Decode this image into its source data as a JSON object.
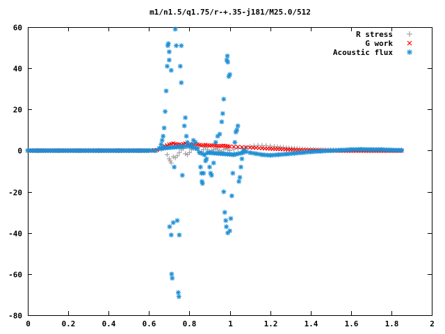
{
  "chart_data": {
    "type": "scatter",
    "title": "m1/n1.5/q1.75/r-+.35-j181/M25.0/512",
    "xlabel": "",
    "ylabel": "",
    "xlim": [
      0,
      2
    ],
    "ylim": [
      -80,
      60
    ],
    "x_ticks": [
      0,
      0.2,
      0.4,
      0.6,
      0.8,
      1,
      1.2,
      1.4,
      1.6,
      1.8,
      2
    ],
    "x_tick_labels": [
      "0",
      "0.2",
      "0.4",
      "0.6",
      "0.8",
      "1",
      "1.2",
      "1.4",
      "1.6",
      "1.8",
      "2"
    ],
    "y_ticks": [
      -80,
      -60,
      -40,
      -20,
      0,
      20,
      40,
      60
    ],
    "y_tick_labels": [
      "-80",
      "-60",
      "-40",
      "-20",
      "0",
      "20",
      "40",
      "60"
    ],
    "grid": false,
    "legend_position": "top-right",
    "series": [
      {
        "name": "R stress",
        "marker": "plus",
        "color": "#a0a0a0",
        "points": [
          [
            0.0,
            0.0
          ],
          [
            0.1,
            0.0
          ],
          [
            0.2,
            0.0
          ],
          [
            0.3,
            0.0
          ],
          [
            0.4,
            0.0
          ],
          [
            0.5,
            0.0
          ],
          [
            0.6,
            0.0
          ],
          [
            0.64,
            0.0
          ],
          [
            0.66,
            0.5
          ],
          [
            0.67,
            1.0
          ],
          [
            0.68,
            2.5
          ],
          [
            0.69,
            -2.0
          ],
          [
            0.7,
            -4.0
          ],
          [
            0.705,
            -5.0
          ],
          [
            0.71,
            -6.0
          ],
          [
            0.72,
            -3.0
          ],
          [
            0.73,
            -3.5
          ],
          [
            0.74,
            -2.5
          ],
          [
            0.75,
            -1.0
          ],
          [
            0.76,
            0.5
          ],
          [
            0.77,
            1.0
          ],
          [
            0.78,
            -1.5
          ],
          [
            0.79,
            -2.0
          ],
          [
            0.8,
            -1.0
          ],
          [
            0.81,
            0.5
          ],
          [
            0.82,
            1.0
          ],
          [
            0.83,
            1.5
          ],
          [
            0.84,
            0.0
          ],
          [
            0.85,
            -1.0
          ],
          [
            0.86,
            -0.5
          ],
          [
            0.87,
            0.5
          ],
          [
            0.88,
            1.5
          ],
          [
            0.89,
            0.5
          ],
          [
            0.9,
            -0.5
          ],
          [
            0.91,
            0.0
          ],
          [
            0.92,
            0.5
          ],
          [
            0.93,
            1.0
          ],
          [
            0.94,
            0.5
          ],
          [
            0.95,
            0.0
          ],
          [
            0.96,
            -0.5
          ],
          [
            0.97,
            0.5
          ],
          [
            0.98,
            1.0
          ],
          [
            0.99,
            0.5
          ],
          [
            1.0,
            0.0
          ],
          [
            1.02,
            0.5
          ],
          [
            1.04,
            1.0
          ],
          [
            1.06,
            1.0
          ],
          [
            1.08,
            1.5
          ],
          [
            1.1,
            2.0
          ],
          [
            1.12,
            2.3
          ],
          [
            1.14,
            2.5
          ],
          [
            1.16,
            2.5
          ],
          [
            1.18,
            2.4
          ],
          [
            1.2,
            2.2
          ],
          [
            1.22,
            2.0
          ],
          [
            1.25,
            1.7
          ],
          [
            1.28,
            1.4
          ],
          [
            1.32,
            1.1
          ],
          [
            1.36,
            0.8
          ],
          [
            1.4,
            0.6
          ],
          [
            1.45,
            0.4
          ],
          [
            1.5,
            0.3
          ],
          [
            1.55,
            0.2
          ],
          [
            1.6,
            0.1
          ],
          [
            1.65,
            0.1
          ],
          [
            1.7,
            0.0
          ],
          [
            1.75,
            0.0
          ],
          [
            1.8,
            0.0
          ],
          [
            1.85,
            0.0
          ]
        ]
      },
      {
        "name": "G work",
        "marker": "cross",
        "color": "#ff0000",
        "points": [
          [
            0.0,
            0.0
          ],
          [
            0.1,
            0.0
          ],
          [
            0.2,
            0.0
          ],
          [
            0.3,
            0.0
          ],
          [
            0.4,
            0.0
          ],
          [
            0.5,
            0.0
          ],
          [
            0.6,
            0.0
          ],
          [
            0.64,
            0.3
          ],
          [
            0.66,
            1.0
          ],
          [
            0.67,
            1.5
          ],
          [
            0.68,
            2.0
          ],
          [
            0.69,
            2.5
          ],
          [
            0.7,
            3.0
          ],
          [
            0.71,
            3.2
          ],
          [
            0.72,
            3.5
          ],
          [
            0.73,
            3.2
          ],
          [
            0.74,
            3.0
          ],
          [
            0.75,
            3.0
          ],
          [
            0.76,
            2.8
          ],
          [
            0.77,
            3.2
          ],
          [
            0.78,
            3.5
          ],
          [
            0.79,
            3.3
          ],
          [
            0.8,
            3.0
          ],
          [
            0.81,
            2.8
          ],
          [
            0.82,
            3.0
          ],
          [
            0.83,
            3.2
          ],
          [
            0.84,
            3.0
          ],
          [
            0.85,
            2.8
          ],
          [
            0.86,
            2.5
          ],
          [
            0.87,
            2.6
          ],
          [
            0.88,
            2.8
          ],
          [
            0.89,
            2.6
          ],
          [
            0.9,
            2.4
          ],
          [
            0.91,
            2.5
          ],
          [
            0.92,
            2.6
          ],
          [
            0.93,
            2.5
          ],
          [
            0.94,
            2.3
          ],
          [
            0.95,
            2.2
          ],
          [
            0.96,
            2.3
          ],
          [
            0.97,
            2.4
          ],
          [
            0.98,
            2.3
          ],
          [
            0.99,
            2.1
          ],
          [
            1.0,
            2.0
          ],
          [
            1.02,
            1.9
          ],
          [
            1.04,
            1.8
          ],
          [
            1.06,
            1.7
          ],
          [
            1.08,
            1.6
          ],
          [
            1.1,
            1.5
          ],
          [
            1.13,
            1.3
          ],
          [
            1.16,
            1.1
          ],
          [
            1.2,
            0.9
          ],
          [
            1.25,
            0.7
          ],
          [
            1.3,
            0.5
          ],
          [
            1.35,
            0.3
          ],
          [
            1.4,
            0.2
          ],
          [
            1.45,
            0.1
          ],
          [
            1.5,
            0.0
          ],
          [
            1.55,
            -0.1
          ],
          [
            1.6,
            -0.1
          ],
          [
            1.65,
            -0.1
          ],
          [
            1.7,
            -0.1
          ],
          [
            1.75,
            -0.1
          ],
          [
            1.8,
            -0.1
          ],
          [
            1.85,
            -0.1
          ]
        ]
      },
      {
        "name": "Acoustic flux",
        "marker": "star",
        "color": "#1e8fd6",
        "points": [
          [
            0.0,
            0.0
          ],
          [
            0.05,
            0.0
          ],
          [
            0.1,
            0.0
          ],
          [
            0.15,
            0.0
          ],
          [
            0.2,
            0.0
          ],
          [
            0.25,
            0.0
          ],
          [
            0.3,
            0.0
          ],
          [
            0.35,
            0.0
          ],
          [
            0.4,
            0.0
          ],
          [
            0.45,
            0.0
          ],
          [
            0.5,
            0.0
          ],
          [
            0.55,
            0.0
          ],
          [
            0.6,
            0.0
          ],
          [
            0.63,
            0.0
          ],
          [
            0.65,
            1.0
          ],
          [
            0.66,
            3.0
          ],
          [
            0.665,
            5.0
          ],
          [
            0.67,
            7.0
          ],
          [
            0.675,
            11.0
          ],
          [
            0.68,
            19.0
          ],
          [
            0.685,
            29.0
          ],
          [
            0.69,
            41.0
          ],
          [
            0.693,
            51.0
          ],
          [
            0.696,
            52.0
          ],
          [
            0.7,
            48.0
          ],
          [
            0.7,
            44.0
          ],
          [
            0.71,
            39.0
          ],
          [
            0.702,
            -37.0
          ],
          [
            0.71,
            -41.0
          ],
          [
            0.712,
            -60.0
          ],
          [
            0.715,
            -62.0
          ],
          [
            0.72,
            -35.0
          ],
          [
            0.725,
            -8.0
          ],
          [
            0.73,
            59.0
          ],
          [
            0.735,
            51.0
          ],
          [
            0.74,
            -34.0
          ],
          [
            0.745,
            -69.0
          ],
          [
            0.748,
            -71.0
          ],
          [
            0.75,
            -41.0
          ],
          [
            0.755,
            41.0
          ],
          [
            0.76,
            33.0
          ],
          [
            0.76,
            51.0
          ],
          [
            0.765,
            -12.0
          ],
          [
            0.77,
            2.0
          ],
          [
            0.775,
            12.0
          ],
          [
            0.78,
            16.0
          ],
          [
            0.785,
            7.0
          ],
          [
            0.79,
            4.0
          ],
          [
            0.8,
            2.0
          ],
          [
            0.81,
            3.0
          ],
          [
            0.82,
            5.0
          ],
          [
            0.83,
            4.0
          ],
          [
            0.84,
            1.0
          ],
          [
            0.85,
            -1.0
          ],
          [
            0.855,
            -8.0
          ],
          [
            0.86,
            -11.0
          ],
          [
            0.862,
            -15.0
          ],
          [
            0.865,
            -16.0
          ],
          [
            0.87,
            -11.0
          ],
          [
            0.875,
            -2.0
          ],
          [
            0.88,
            -5.0
          ],
          [
            0.885,
            -4.0
          ],
          [
            0.89,
            -1.0
          ],
          [
            0.9,
            -8.0
          ],
          [
            0.905,
            -11.0
          ],
          [
            0.91,
            -12.0
          ],
          [
            0.92,
            -6.0
          ],
          [
            0.93,
            4.0
          ],
          [
            0.94,
            7.0
          ],
          [
            0.95,
            8.0
          ],
          [
            0.96,
            14.0
          ],
          [
            0.965,
            18.0
          ],
          [
            0.97,
            25.0
          ],
          [
            0.97,
            -20.0
          ],
          [
            0.975,
            -30.0
          ],
          [
            0.98,
            -34.0
          ],
          [
            0.983,
            -37.0
          ],
          [
            0.985,
            44.0
          ],
          [
            0.988,
            46.0
          ],
          [
            0.99,
            43.0
          ],
          [
            0.995,
            36.0
          ],
          [
            1.0,
            37.0
          ],
          [
            0.99,
            -40.0
          ],
          [
            1.0,
            -39.0
          ],
          [
            1.005,
            -33.0
          ],
          [
            1.01,
            -22.0
          ],
          [
            1.015,
            -11.0
          ],
          [
            1.02,
            -2.0
          ],
          [
            1.025,
            4.0
          ],
          [
            1.03,
            9.0
          ],
          [
            1.035,
            10.0
          ],
          [
            1.04,
            12.0
          ],
          [
            1.045,
            -15.0
          ],
          [
            1.05,
            -13.0
          ],
          [
            1.055,
            -8.0
          ],
          [
            1.06,
            -4.0
          ],
          [
            1.065,
            -1.0
          ],
          [
            1.07,
            0.0
          ],
          [
            1.08,
            -0.5
          ],
          [
            1.1,
            -1.0
          ],
          [
            1.13,
            -1.5
          ],
          [
            1.16,
            -2.0
          ],
          [
            1.2,
            -2.3
          ],
          [
            1.24,
            -2.0
          ],
          [
            1.28,
            -1.7
          ],
          [
            1.32,
            -1.3
          ],
          [
            1.36,
            -1.0
          ],
          [
            1.4,
            -0.6
          ],
          [
            1.45,
            -0.3
          ],
          [
            1.5,
            0.0
          ],
          [
            1.55,
            0.2
          ],
          [
            1.6,
            0.5
          ],
          [
            1.65,
            0.6
          ],
          [
            1.7,
            0.5
          ],
          [
            1.75,
            0.5
          ],
          [
            1.8,
            0.3
          ],
          [
            1.85,
            0.2
          ]
        ]
      }
    ]
  }
}
